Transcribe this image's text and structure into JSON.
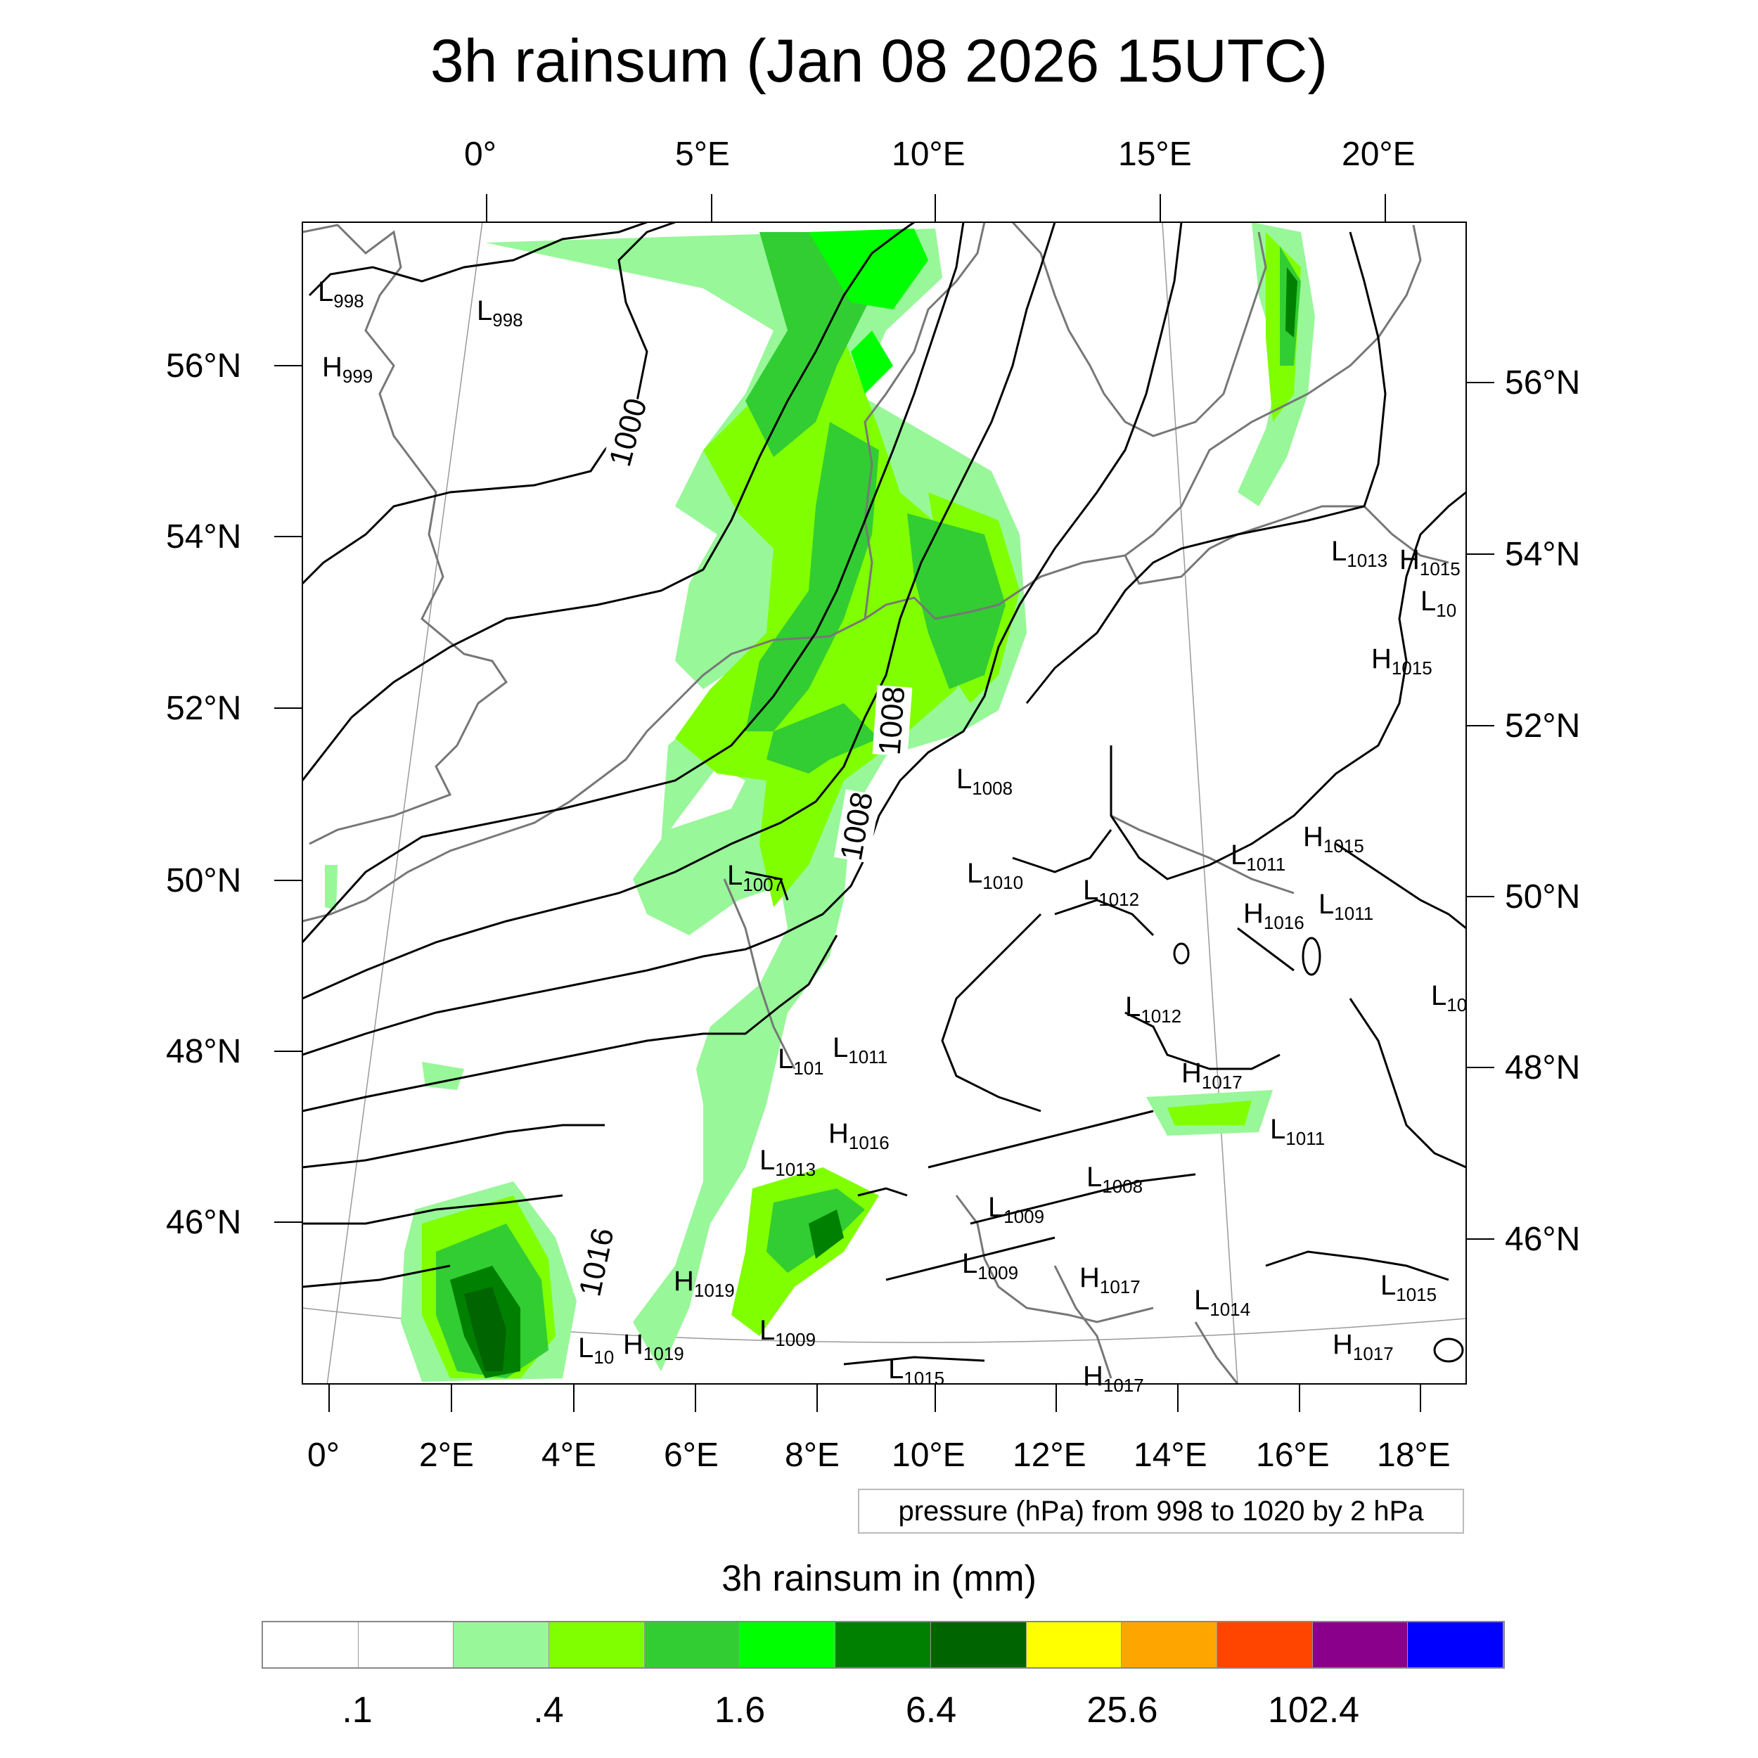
{
  "title": "3h rainsum (Jan 08 2026 15UTC)",
  "top_lon_labels": [
    "0°",
    "5°E",
    "10°E",
    "15°E",
    "20°E"
  ],
  "bottom_lon_labels": [
    "0°",
    "2°E",
    "4°E",
    "6°E",
    "8°E",
    "10°E",
    "12°E",
    "14°E",
    "16°E",
    "18°E"
  ],
  "left_lat_labels": [
    "56°N",
    "54°N",
    "52°N",
    "50°N",
    "48°N",
    "46°N"
  ],
  "right_lat_labels": [
    "56°N",
    "54°N",
    "52°N",
    "50°N",
    "48°N",
    "46°N"
  ],
  "isobar_labels": [
    "1000",
    "1008",
    "1008",
    "1016"
  ],
  "pressure_centers": [
    {
      "t": "L",
      "v": "998"
    },
    {
      "t": "L",
      "v": "998"
    },
    {
      "t": "H",
      "v": "999"
    },
    {
      "t": "L",
      "v": "1013"
    },
    {
      "t": "H",
      "v": "1015"
    },
    {
      "t": "L",
      "v": "10"
    },
    {
      "t": "H",
      "v": "1015"
    },
    {
      "t": "L",
      "v": "1008"
    },
    {
      "t": "L",
      "v": "1010"
    },
    {
      "t": "L",
      "v": "1007"
    },
    {
      "t": "L",
      "v": "1012"
    },
    {
      "t": "L",
      "v": "1011"
    },
    {
      "t": "H",
      "v": "1015"
    },
    {
      "t": "H",
      "v": "1016"
    },
    {
      "t": "L",
      "v": "1011"
    },
    {
      "t": "L",
      "v": "10"
    },
    {
      "t": "L",
      "v": "1012"
    },
    {
      "t": "L",
      "v": "101"
    },
    {
      "t": "L",
      "v": "1011"
    },
    {
      "t": "H",
      "v": "1017"
    },
    {
      "t": "H",
      "v": "1016"
    },
    {
      "t": "L",
      "v": "1011"
    },
    {
      "t": "L",
      "v": "1013"
    },
    {
      "t": "L",
      "v": "1008"
    },
    {
      "t": "L",
      "v": "1009"
    },
    {
      "t": "L",
      "v": "1009"
    },
    {
      "t": "H",
      "v": "1017"
    },
    {
      "t": "H",
      "v": "1019"
    },
    {
      "t": "L",
      "v": "1014"
    },
    {
      "t": "L",
      "v": "1015"
    },
    {
      "t": "L",
      "v": "10"
    },
    {
      "t": "H",
      "v": "1019"
    },
    {
      "t": "L",
      "v": "1009"
    },
    {
      "t": "L",
      "v": "1015"
    },
    {
      "t": "H",
      "v": "1017"
    },
    {
      "t": "H",
      "v": "1017"
    }
  ],
  "pressure_note": "pressure (hPa) from 998 to 1020 by 2 hPa",
  "colorbar": {
    "title": "3h rainsum in (mm)",
    "colors": [
      "#ffffff",
      "#ffffff",
      "#98f798",
      "#80ff00",
      "#32cd32",
      "#00ff00",
      "#008000",
      "#006400",
      "#ffff00",
      "#ffa500",
      "#ff4500",
      "#8b008b",
      "#0000ff"
    ],
    "tick_labels": [
      ".1",
      ".4",
      "1.6",
      "6.4",
      "25.6",
      "102.4"
    ]
  }
}
